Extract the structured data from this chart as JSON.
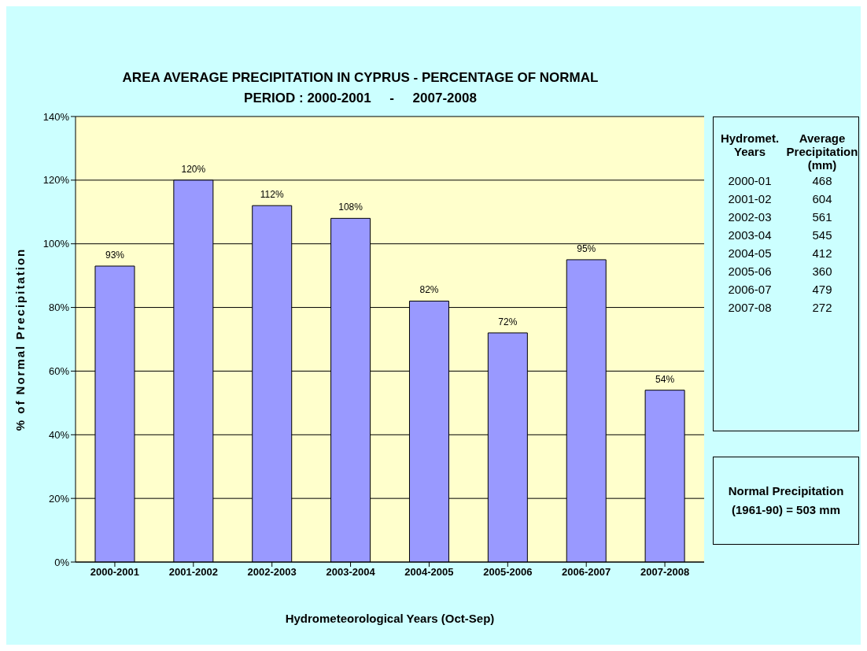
{
  "chart_data": {
    "type": "bar",
    "title": "AREA AVERAGE PRECIPITATION IN CYPRUS - PERCENTAGE OF NORMAL\nPERIOD : 2000-2001     -     2007-2008",
    "xlabel": "Hydrometeorological Years (Oct-Sep)",
    "ylabel": "% of Normal Precipitation",
    "categories": [
      "2000-2001",
      "2001-2002",
      "2002-2003",
      "2003-2004",
      "2004-2005",
      "2005-2006",
      "2006-2007",
      "2007-2008"
    ],
    "values": [
      93,
      120,
      112,
      108,
      82,
      72,
      95,
      54
    ],
    "value_labels": [
      "93%",
      "120%",
      "112%",
      "108%",
      "82%",
      "72%",
      "95%",
      "54%"
    ],
    "color": "#9999ff",
    "ylim": [
      0,
      140
    ],
    "yticks": [
      {
        "value": 0,
        "label": "0%"
      },
      {
        "value": 20,
        "label": "20%"
      },
      {
        "value": 40,
        "label": "40%"
      },
      {
        "value": 60,
        "label": "60%"
      },
      {
        "value": 80,
        "label": "80%"
      },
      {
        "value": 100,
        "label": "100%"
      },
      {
        "value": 120,
        "label": "120%"
      },
      {
        "value": 140,
        "label": "140%"
      }
    ],
    "grid": "y",
    "legend": false,
    "annotations": [
      "Hydromet.\nYears",
      "Average\nPrecipitation\n(mm)",
      "2000-01",
      "468",
      "2001-02",
      "604",
      "2002-03",
      "561",
      "2003-04",
      "545",
      "2004-05",
      "412",
      "2005-06",
      "360",
      "2006-07",
      "479",
      "2007-08",
      "272",
      "Normal Precipitation\n(1961-90) = 503 mm"
    ]
  }
}
